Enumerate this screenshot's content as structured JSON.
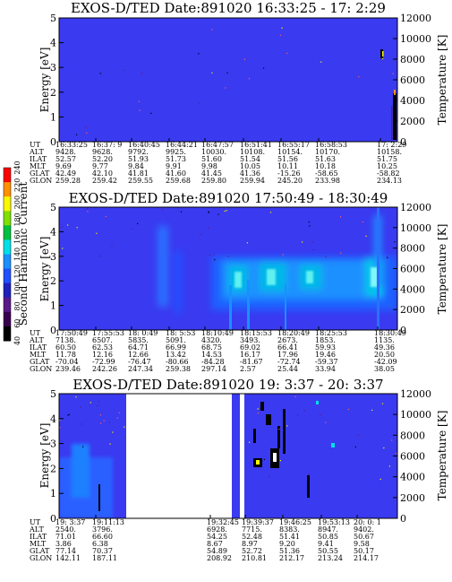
{
  "colors": {
    "background": "#3a3af0",
    "colorbar": [
      "#000000",
      "#3a0050",
      "#5a1a8a",
      "#2020c0",
      "#2050ff",
      "#1a90ff",
      "#00e0e8",
      "#00c040",
      "#80e000",
      "#f8f800",
      "#ff9000",
      "#ff0000"
    ]
  },
  "colorbar": {
    "label": "Second Harmonic Current",
    "ticks": [
      "40",
      "60",
      "80",
      "100",
      "120",
      "140",
      "160",
      "180",
      "200",
      "220",
      "240"
    ]
  },
  "chart_data": [
    {
      "type": "heatmap",
      "title": "EXOS-D/TED   Date:891020  16:33:25 - 17: 2:29",
      "ylabel": "Energy [eV]",
      "y2label": "Temperature [K]",
      "ylim": [
        0,
        5
      ],
      "y2lim": [
        0,
        12000
      ],
      "yticks": [
        "0",
        "1",
        "2",
        "3",
        "4",
        "5"
      ],
      "y2ticks": [
        "0",
        "2000",
        "4000",
        "6000",
        "8000",
        "10000",
        "12000"
      ],
      "orbit": {
        "labels": [
          "UT",
          "ALT",
          "ILAT",
          "MLT",
          "GLAT",
          "GLON"
        ],
        "columns": [
          [
            "16:33:25",
            "9428.",
            "52.57",
            "9.69",
            "42.49",
            "259.28"
          ],
          [
            "16:37: 9",
            "9628.",
            "52.20",
            "9.77",
            "42.10",
            "259.42"
          ],
          [
            "16:40:45",
            "9792.",
            "51.93",
            "9.84",
            "41.81",
            "259.55"
          ],
          [
            "16:44:21",
            "9925.",
            "51.73",
            "9.91",
            "41.60",
            "259.68"
          ],
          [
            "16:47:57",
            "10030.",
            "51.60",
            "9.98",
            "41.45",
            "259.80"
          ],
          [
            "16:51:41",
            "10108.",
            "51.54",
            "10.05",
            "41.36",
            "259.94"
          ],
          [
            "16:55:17",
            "10154.",
            "51.56",
            "10.11",
            "-15.26",
            "245.20"
          ],
          [
            "16:58:53",
            "10170.",
            "51.63",
            "10.18",
            "-58.65",
            "233.98"
          ],
          [
            "17: 2:29",
            "10158.",
            "51.75",
            "10.25",
            "-58.82",
            "234.13"
          ]
        ]
      }
    },
    {
      "type": "heatmap",
      "title": "EXOS-D/TED   Date:891020  17:50:49 - 18:30:49",
      "ylabel": "Energy [eV]",
      "y2label": "Temperature [K]",
      "ylim": [
        0,
        5
      ],
      "y2lim": [
        0,
        12000
      ],
      "yticks": [
        "0",
        "1",
        "2",
        "3",
        "4",
        "5"
      ],
      "y2ticks": [
        "0",
        "2000",
        "4000",
        "6000",
        "8000",
        "10000",
        "12000"
      ],
      "orbit": {
        "labels": [
          "UT",
          "ALT",
          "ILAT",
          "MLT",
          "GLAT",
          "GLON"
        ],
        "columns": [
          [
            "17:50:49",
            "7138.",
            "60.50",
            "11.78",
            "-70.04",
            "239.46"
          ],
          [
            "17:55:53",
            "6507.",
            "62.53",
            "12.16",
            "-72.99",
            "242.26"
          ],
          [
            "18: 0:49",
            "5835.",
            "64.71",
            "12.66",
            "-76.47",
            "247.34"
          ],
          [
            "18: 5:53",
            "5091.",
            "66.99",
            "13.42",
            "-80.66",
            "259.38"
          ],
          [
            "18:10:49",
            "4320.",
            "68.75",
            "14.53",
            "-84.28",
            "297.14"
          ],
          [
            "18:15:53",
            "3493.",
            "69.02",
            "16.17",
            "-81.67",
            "2.57"
          ],
          [
            "18:20:49",
            "2673.",
            "66.41",
            "17.96",
            "-72.74",
            "25.44"
          ],
          [
            "18:25:53",
            "1853.",
            "59.93",
            "19.46",
            "-59.37",
            "33.94"
          ],
          [
            "18:30:49",
            "1135.",
            "49.36",
            "20.50",
            "-42.09",
            "38.05"
          ]
        ]
      }
    },
    {
      "type": "heatmap",
      "title": "EXOS-D/TED   Date:891020  19: 3:37 - 20: 3:37",
      "ylabel": "Energy [eV]",
      "y2label": "Temperature [K]",
      "ylim": [
        0,
        5
      ],
      "y2lim": [
        0,
        12000
      ],
      "yticks": [
        "0",
        "1",
        "2",
        "3",
        "4",
        "5"
      ],
      "y2ticks": [
        "0",
        "2000",
        "4000",
        "6000",
        "8000",
        "10000",
        "12000"
      ],
      "orbit": {
        "labels": [
          "UT",
          "ALT",
          "ILAT",
          "MLT",
          "GLAT",
          "GLON"
        ],
        "columns": [
          [
            "19: 3:37",
            "2540.",
            "71.01",
            "3.86",
            "77.14",
            "142.11"
          ],
          [
            "19:11:13",
            "3796.",
            "66.60",
            "6.38",
            "70.37",
            "187.11"
          ],
          [
            "19:32:45",
            "6928.",
            "54.25",
            "8.67",
            "54.89",
            "208.92"
          ],
          [
            "19:39:37",
            "7715.",
            "52.48",
            "8.97",
            "52.72",
            "210.81"
          ],
          [
            "19:46:25",
            "8383.",
            "51.41",
            "9.20",
            "51.36",
            "212.17"
          ],
          [
            "19:53:13",
            "8947.",
            "50.85",
            "9.41",
            "50.55",
            "213.24"
          ],
          [
            "20: 0: 1",
            "9402.",
            "50.67",
            "9.58",
            "50.17",
            "214.17"
          ]
        ]
      }
    }
  ]
}
